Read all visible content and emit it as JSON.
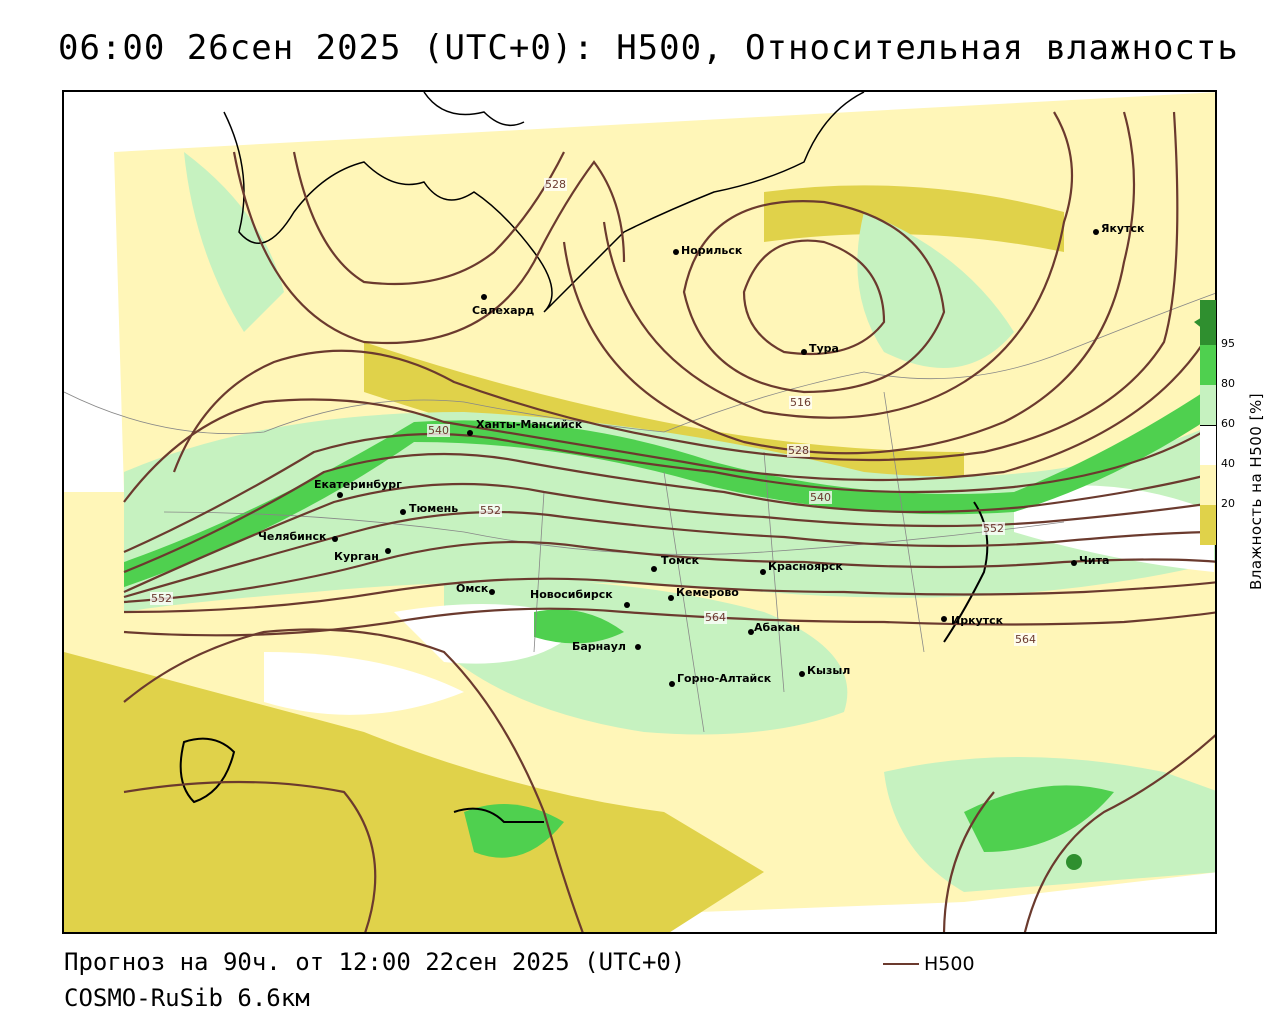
{
  "title": "06:00 26сен 2025 (UTC+0): H500, Относительная влажность",
  "forecast_line": "Прогноз на 90ч. от 12:00 22сен 2025 (UTC+0)",
  "model_line": "COSMO-RuSib 6.6км",
  "legend": {
    "h500_label": "H500",
    "h500_color": "#6b3a2e"
  },
  "humidity_scale": {
    "title": "Влажность на Н500 [%]",
    "ticks": [
      "95",
      "80",
      "60",
      "40",
      "20"
    ],
    "colors": {
      "c95": "#2f8f2f",
      "c80": "#4fd04f",
      "c60": "#c6f2c0",
      "c40": "#ffffff",
      "c20": "#fff6b8",
      "c0": "#e0d24a"
    }
  },
  "cities": [
    {
      "name": "Норильск"
    },
    {
      "name": "Якутск"
    },
    {
      "name": "Салехард"
    },
    {
      "name": "Тура"
    },
    {
      "name": "Ханты-Мансийск"
    },
    {
      "name": "Екатеринбург"
    },
    {
      "name": "Тюмень"
    },
    {
      "name": "Челябинск"
    },
    {
      "name": "Курган"
    },
    {
      "name": "Омск"
    },
    {
      "name": "Новосибирск"
    },
    {
      "name": "Томск"
    },
    {
      "name": "Кемерово"
    },
    {
      "name": "Красноярск"
    },
    {
      "name": "Барнаул"
    },
    {
      "name": "Абакан"
    },
    {
      "name": "Горно-Алтайск"
    },
    {
      "name": "Кызыл"
    },
    {
      "name": "Иркутск"
    },
    {
      "name": "Чита"
    }
  ],
  "contour_labels": [
    "528",
    "516",
    "528",
    "540",
    "540",
    "552",
    "552",
    "552",
    "564",
    "564"
  ]
}
